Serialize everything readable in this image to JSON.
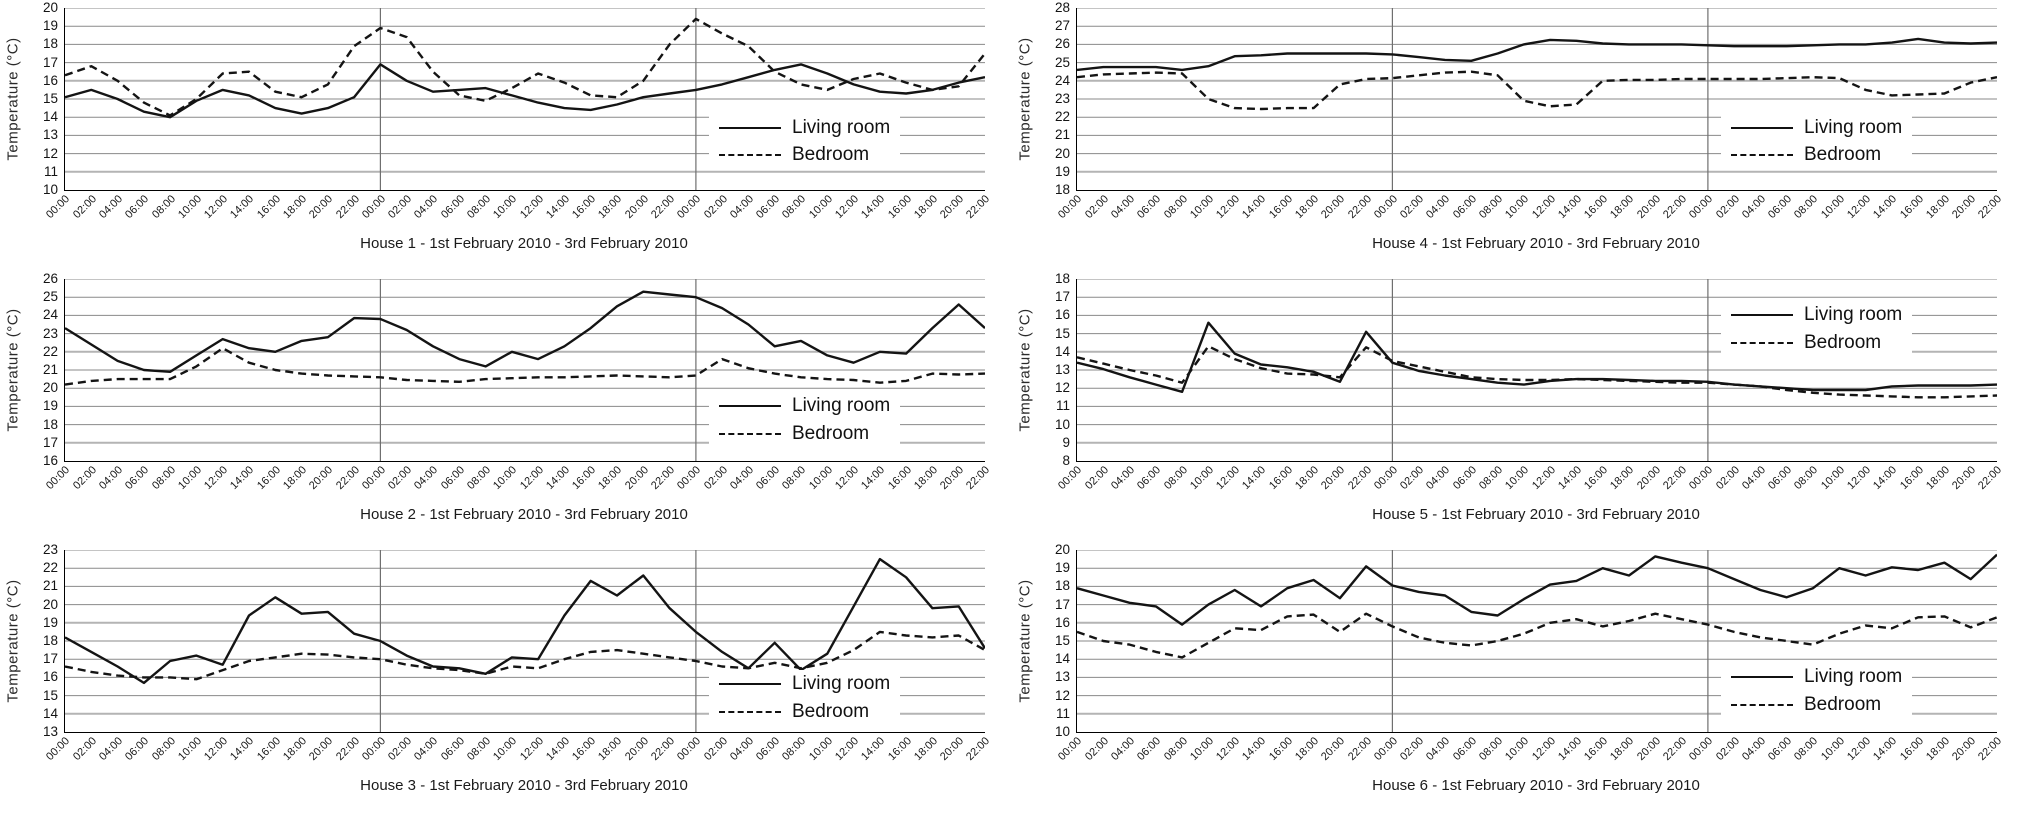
{
  "page": {
    "background": "#ffffff",
    "line_color": "#141414",
    "gridline_color": "#8a8a8a"
  },
  "ylabel": "Temperature (°C)",
  "legend": {
    "living_label": "Living room",
    "bedroom_label": "Bedroom"
  },
  "x_labels": [
    "00:00",
    "02:00",
    "04:00",
    "06:00",
    "08:00",
    "10:00",
    "12:00",
    "14:00",
    "16:00",
    "18:00",
    "20:00",
    "22:00",
    "00:00",
    "02:00",
    "04:00",
    "06:00",
    "08:00",
    "10:00",
    "12:00",
    "14:00",
    "16:00",
    "18:00",
    "20:00",
    "22:00",
    "00:00",
    "02:00",
    "04:00",
    "06:00",
    "08:00",
    "10:00",
    "12:00",
    "14:00",
    "16:00",
    "18:00",
    "20:00",
    "22:00"
  ],
  "chart_data": [
    {
      "type": "line",
      "house": "House 1",
      "title": "House 1 - 1st February 2010 - 3rd February 2010",
      "xlabel": "",
      "ylabel": "Temperature (°C)",
      "ylim": [
        10,
        20
      ],
      "yticks": [
        20,
        19,
        18,
        17,
        16,
        15,
        14,
        13,
        12,
        11,
        10
      ],
      "grid": "on",
      "legend_position": "middle-right",
      "legend_top_pct": 58,
      "series": [
        {
          "name": "Living room",
          "style": "solid",
          "values": [
            15.1,
            15.5,
            15.0,
            14.3,
            14.0,
            14.9,
            15.5,
            15.2,
            14.5,
            14.2,
            14.5,
            15.1,
            16.9,
            16.0,
            15.4,
            15.5,
            15.6,
            15.2,
            14.8,
            14.5,
            14.4,
            14.7,
            15.1,
            15.3,
            15.5,
            15.8,
            16.2,
            16.6,
            16.9,
            16.4,
            15.8,
            15.4,
            15.3,
            15.5,
            15.9,
            16.2
          ]
        },
        {
          "name": "Bedroom",
          "style": "dashed",
          "values": [
            16.3,
            16.8,
            16.0,
            14.8,
            14.1,
            15.0,
            16.4,
            16.5,
            15.4,
            15.1,
            15.8,
            17.9,
            18.9,
            18.4,
            16.5,
            15.2,
            14.9,
            15.6,
            16.4,
            15.9,
            15.2,
            15.1,
            16.0,
            18.0,
            19.4,
            18.6,
            17.9,
            16.5,
            15.8,
            15.5,
            16.1,
            16.4,
            15.9,
            15.5,
            15.7,
            17.5
          ]
        }
      ]
    },
    {
      "type": "line",
      "house": "House 4",
      "title": "House 4 - 1st February 2010 - 3rd February 2010",
      "xlabel": "",
      "ylabel": "Temperature (°C)",
      "ylim": [
        18,
        28
      ],
      "yticks": [
        28,
        27,
        26,
        25,
        24,
        23,
        22,
        21,
        20,
        19,
        18
      ],
      "grid": "on",
      "legend_position": "middle-right",
      "legend_top_pct": 58,
      "series": [
        {
          "name": "Living room",
          "style": "solid",
          "values": [
            24.6,
            24.75,
            24.75,
            24.75,
            24.6,
            24.8,
            25.35,
            25.4,
            25.5,
            25.5,
            25.5,
            25.5,
            25.45,
            25.3,
            25.15,
            25.1,
            25.5,
            26.0,
            26.25,
            26.2,
            26.05,
            26.0,
            26.0,
            26.0,
            25.95,
            25.9,
            25.9,
            25.9,
            25.95,
            26.0,
            26.0,
            26.1,
            26.3,
            26.1,
            26.05,
            26.1
          ]
        },
        {
          "name": "Bedroom",
          "style": "dashed",
          "values": [
            24.2,
            24.35,
            24.4,
            24.45,
            24.4,
            23.0,
            22.5,
            22.45,
            22.5,
            22.5,
            23.8,
            24.1,
            24.15,
            24.3,
            24.45,
            24.5,
            24.3,
            22.9,
            22.6,
            22.7,
            24.0,
            24.05,
            24.05,
            24.1,
            24.1,
            24.1,
            24.1,
            24.15,
            24.2,
            24.15,
            23.5,
            23.2,
            23.25,
            23.3,
            23.9,
            24.2
          ]
        }
      ]
    },
    {
      "type": "line",
      "house": "House 2",
      "title": "House 2 - 1st February 2010 - 3rd February 2010",
      "xlabel": "",
      "ylabel": "Temperature (°C)",
      "ylim": [
        16,
        26
      ],
      "yticks": [
        26,
        25,
        24,
        23,
        22,
        21,
        20,
        19,
        18,
        17,
        16
      ],
      "grid": "on",
      "legend_position": "lower-right",
      "legend_top_pct": 62,
      "series": [
        {
          "name": "Living room",
          "style": "solid",
          "values": [
            23.3,
            22.4,
            21.5,
            21.0,
            20.9,
            21.8,
            22.7,
            22.2,
            22.0,
            22.6,
            22.8,
            23.85,
            23.8,
            23.2,
            22.3,
            21.6,
            21.2,
            22.0,
            21.6,
            22.3,
            23.3,
            24.5,
            25.3,
            25.15,
            25.0,
            24.4,
            23.5,
            22.3,
            22.6,
            21.8,
            21.4,
            22.0,
            21.9,
            23.3,
            24.6,
            23.3
          ]
        },
        {
          "name": "Bedroom",
          "style": "dashed",
          "values": [
            20.2,
            20.4,
            20.5,
            20.5,
            20.5,
            21.2,
            22.2,
            21.4,
            21.0,
            20.8,
            20.7,
            20.65,
            20.6,
            20.45,
            20.4,
            20.35,
            20.5,
            20.55,
            20.6,
            20.6,
            20.65,
            20.7,
            20.65,
            20.6,
            20.7,
            21.6,
            21.1,
            20.8,
            20.6,
            20.5,
            20.45,
            20.3,
            20.4,
            20.8,
            20.75,
            20.8
          ]
        }
      ]
    },
    {
      "type": "line",
      "house": "House 5",
      "title": "House 5 - 1st February 2010 - 3rd February 2010",
      "xlabel": "",
      "ylabel": "Temperature (°C)",
      "ylim": [
        8,
        18
      ],
      "yticks": [
        18,
        17,
        16,
        15,
        14,
        13,
        12,
        11,
        10,
        9,
        8
      ],
      "grid": "on",
      "legend_position": "top-right",
      "legend_top_pct": 12,
      "series": [
        {
          "name": "Living room",
          "style": "solid",
          "values": [
            13.4,
            13.05,
            12.6,
            12.2,
            11.8,
            15.6,
            13.9,
            13.3,
            13.15,
            12.9,
            12.35,
            15.1,
            13.4,
            12.95,
            12.7,
            12.5,
            12.3,
            12.2,
            12.4,
            12.5,
            12.5,
            12.45,
            12.4,
            12.4,
            12.35,
            12.2,
            12.1,
            12.0,
            11.9,
            11.9,
            11.9,
            12.1,
            12.15,
            12.15,
            12.15,
            12.2
          ]
        },
        {
          "name": "Bedroom",
          "style": "dashed",
          "values": [
            13.7,
            13.35,
            13.0,
            12.7,
            12.3,
            14.3,
            13.6,
            13.1,
            12.8,
            12.75,
            12.6,
            14.25,
            13.5,
            13.2,
            12.9,
            12.6,
            12.5,
            12.45,
            12.45,
            12.5,
            12.45,
            12.4,
            12.35,
            12.3,
            12.3,
            12.2,
            12.1,
            11.9,
            11.75,
            11.65,
            11.6,
            11.55,
            11.5,
            11.5,
            11.55,
            11.6
          ]
        }
      ]
    },
    {
      "type": "line",
      "house": "House 3",
      "title": "House 3 - 1st February 2010 - 3rd February 2010",
      "xlabel": "",
      "ylabel": "Temperature (°C)",
      "ylim": [
        13,
        23
      ],
      "yticks": [
        23,
        22,
        21,
        20,
        19,
        18,
        17,
        16,
        15,
        14,
        13
      ],
      "grid": "on",
      "legend_position": "lower-right",
      "legend_top_pct": 66,
      "series": [
        {
          "name": "Living room",
          "style": "solid",
          "values": [
            18.2,
            17.4,
            16.6,
            15.7,
            16.9,
            17.2,
            16.7,
            19.4,
            20.4,
            19.5,
            19.6,
            18.4,
            18.0,
            17.2,
            16.6,
            16.5,
            16.2,
            17.1,
            17.0,
            19.4,
            21.3,
            20.5,
            21.6,
            19.8,
            18.5,
            17.4,
            16.5,
            17.9,
            16.4,
            17.3,
            19.9,
            22.5,
            21.5,
            19.8,
            19.9,
            17.6
          ]
        },
        {
          "name": "Bedroom",
          "style": "dashed",
          "values": [
            16.6,
            16.3,
            16.1,
            16.0,
            16.0,
            15.9,
            16.4,
            16.9,
            17.1,
            17.3,
            17.25,
            17.1,
            17.0,
            16.7,
            16.5,
            16.4,
            16.2,
            16.6,
            16.5,
            17.0,
            17.4,
            17.5,
            17.3,
            17.1,
            16.9,
            16.6,
            16.5,
            16.8,
            16.5,
            16.8,
            17.5,
            18.5,
            18.3,
            18.2,
            18.3,
            17.5
          ]
        }
      ]
    },
    {
      "type": "line",
      "house": "House 6",
      "title": "House 6 - 1st February 2010 - 3rd February 2010",
      "xlabel": "",
      "ylabel": "Temperature (°C)",
      "ylim": [
        10,
        20
      ],
      "yticks": [
        20,
        19,
        18,
        17,
        16,
        15,
        14,
        13,
        12,
        11,
        10
      ],
      "grid": "on",
      "legend_position": "lower-right",
      "legend_top_pct": 62,
      "series": [
        {
          "name": "Living room",
          "style": "solid",
          "values": [
            17.9,
            17.5,
            17.1,
            16.9,
            15.9,
            17.0,
            17.8,
            16.9,
            17.9,
            18.35,
            17.35,
            19.1,
            18.05,
            17.7,
            17.5,
            16.6,
            16.4,
            17.3,
            18.1,
            18.3,
            19.0,
            18.6,
            19.65,
            19.3,
            19.0,
            18.4,
            17.8,
            17.4,
            17.9,
            19.0,
            18.6,
            19.05,
            18.9,
            19.3,
            18.4,
            19.75
          ]
        },
        {
          "name": "Bedroom",
          "style": "dashed",
          "values": [
            15.5,
            15.0,
            14.8,
            14.4,
            14.1,
            14.9,
            15.7,
            15.6,
            16.35,
            16.45,
            15.5,
            16.5,
            15.8,
            15.2,
            14.9,
            14.75,
            15.0,
            15.4,
            16.0,
            16.2,
            15.8,
            16.1,
            16.5,
            16.2,
            15.9,
            15.5,
            15.2,
            15.0,
            14.8,
            15.4,
            15.85,
            15.7,
            16.3,
            16.35,
            15.75,
            16.3
          ]
        }
      ]
    }
  ]
}
